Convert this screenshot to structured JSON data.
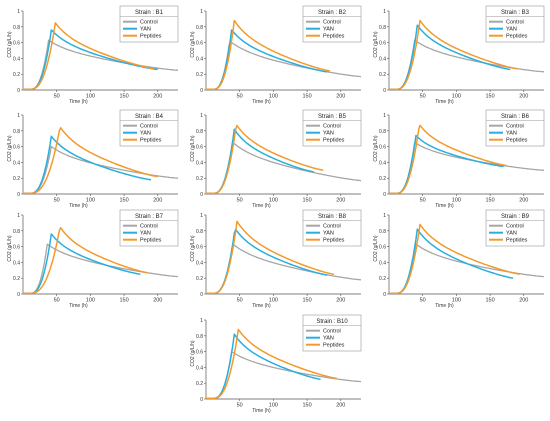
{
  "figure": {
    "legend_title_prefix": "Strain : ",
    "colors": {
      "Control": "#a6a6a6",
      "YAN": "#2aaee0",
      "Peptides": "#f39a2b"
    }
  },
  "chart_data": [
    {
      "type": "line",
      "strain": "B1",
      "xlabel": "Time (h)",
      "ylabel": "CO2 (g/L/h)",
      "xlim": [
        0,
        230
      ],
      "ylim": [
        0,
        1.0
      ],
      "xticks": [
        50,
        100,
        150,
        200
      ],
      "yticks": [
        0,
        0.2,
        0.4,
        0.6,
        0.8,
        1.0
      ],
      "ytick_labels": [
        "0",
        "0.2",
        "0.4",
        "0.6",
        "0.8",
        "1"
      ],
      "grid": false,
      "legend": "top-right",
      "series": [
        {
          "name": "Control",
          "peak_x": 38,
          "peak_y": 0.63,
          "end_x": 230,
          "end_y": 0.25
        },
        {
          "name": "YAN",
          "peak_x": 42,
          "peak_y": 0.76,
          "end_x": 200,
          "end_y": 0.26
        },
        {
          "name": "Peptides",
          "peak_x": 48,
          "peak_y": 0.85,
          "end_x": 195,
          "end_y": 0.27
        }
      ]
    },
    {
      "type": "line",
      "strain": "B2",
      "xlabel": "Time (h)",
      "ylabel": "CO2 (g/L/h)",
      "xlim": [
        0,
        230
      ],
      "ylim": [
        0,
        1.0
      ],
      "xticks": [
        50,
        100,
        150,
        200
      ],
      "yticks": [
        0,
        0.2,
        0.4,
        0.6,
        0.8,
        1.0
      ],
      "ytick_labels": [
        "0",
        "0.2",
        "0.4",
        "0.6",
        "0.8",
        "1"
      ],
      "grid": false,
      "legend": "top-right",
      "series": [
        {
          "name": "Control",
          "peak_x": 35,
          "peak_y": 0.62,
          "end_x": 230,
          "end_y": 0.17
        },
        {
          "name": "YAN",
          "peak_x": 38,
          "peak_y": 0.76,
          "end_x": 180,
          "end_y": 0.23
        },
        {
          "name": "Peptides",
          "peak_x": 42,
          "peak_y": 0.88,
          "end_x": 185,
          "end_y": 0.24
        }
      ]
    },
    {
      "type": "line",
      "strain": "B3",
      "xlabel": "Time (h)",
      "ylabel": "CO2 (g/L/h)",
      "xlim": [
        0,
        230
      ],
      "ylim": [
        0,
        1.0
      ],
      "xticks": [
        50,
        100,
        150,
        200
      ],
      "yticks": [
        0,
        0.2,
        0.4,
        0.6,
        0.8,
        1.0
      ],
      "ytick_labels": [
        "0",
        "0.2",
        "0.4",
        "0.6",
        "0.8",
        "1"
      ],
      "grid": false,
      "legend": "top-right",
      "series": [
        {
          "name": "Control",
          "peak_x": 38,
          "peak_y": 0.63,
          "end_x": 230,
          "end_y": 0.23
        },
        {
          "name": "YAN",
          "peak_x": 42,
          "peak_y": 0.82,
          "end_x": 180,
          "end_y": 0.26
        },
        {
          "name": "Peptides",
          "peak_x": 46,
          "peak_y": 0.88,
          "end_x": 190,
          "end_y": 0.27
        }
      ]
    },
    {
      "type": "line",
      "strain": "B4",
      "xlabel": "Time (h)",
      "ylabel": "CO2 (g/L/h)",
      "xlim": [
        0,
        230
      ],
      "ylim": [
        0,
        1.0
      ],
      "xticks": [
        50,
        100,
        150,
        200
      ],
      "yticks": [
        0,
        0.2,
        0.4,
        0.6,
        0.8,
        1.0
      ],
      "ytick_labels": [
        "0",
        "0.2",
        "0.4",
        "0.6",
        "0.8",
        "1"
      ],
      "grid": false,
      "legend": "top-right",
      "series": [
        {
          "name": "Control",
          "peak_x": 42,
          "peak_y": 0.6,
          "end_x": 230,
          "end_y": 0.2
        },
        {
          "name": "YAN",
          "peak_x": 42,
          "peak_y": 0.73,
          "end_x": 190,
          "end_y": 0.18
        },
        {
          "name": "Peptides",
          "peak_x": 55,
          "peak_y": 0.85,
          "end_x": 200,
          "end_y": 0.22
        }
      ]
    },
    {
      "type": "line",
      "strain": "B5",
      "xlabel": "Time (h)",
      "ylabel": "CO2 (g/L/h)",
      "xlim": [
        0,
        230
      ],
      "ylim": [
        0,
        1.0
      ],
      "xticks": [
        50,
        100,
        150,
        200
      ],
      "yticks": [
        0,
        0.2,
        0.4,
        0.6,
        0.8,
        1.0
      ],
      "ytick_labels": [
        "0",
        "0.2",
        "0.4",
        "0.6",
        "0.8",
        "1"
      ],
      "grid": false,
      "legend": "top-right",
      "series": [
        {
          "name": "Control",
          "peak_x": 40,
          "peak_y": 0.65,
          "end_x": 230,
          "end_y": 0.17
        },
        {
          "name": "YAN",
          "peak_x": 42,
          "peak_y": 0.82,
          "end_x": 160,
          "end_y": 0.28
        },
        {
          "name": "Peptides",
          "peak_x": 45,
          "peak_y": 0.88,
          "end_x": 175,
          "end_y": 0.3
        }
      ]
    },
    {
      "type": "line",
      "strain": "B6",
      "xlabel": "Time (h)",
      "ylabel": "CO2 (g/L/h)",
      "xlim": [
        0,
        230
      ],
      "ylim": [
        0,
        1.0
      ],
      "xticks": [
        50,
        100,
        150,
        200
      ],
      "yticks": [
        0,
        0.2,
        0.4,
        0.6,
        0.8,
        1.0
      ],
      "ytick_labels": [
        "0",
        "0.2",
        "0.4",
        "0.6",
        "0.8",
        "1"
      ],
      "grid": false,
      "legend": "top-right",
      "series": [
        {
          "name": "Control",
          "peak_x": 38,
          "peak_y": 0.65,
          "end_x": 230,
          "end_y": 0.3
        },
        {
          "name": "YAN",
          "peak_x": 40,
          "peak_y": 0.74,
          "end_x": 170,
          "end_y": 0.35
        },
        {
          "name": "Peptides",
          "peak_x": 45,
          "peak_y": 0.88,
          "end_x": 175,
          "end_y": 0.36
        }
      ]
    },
    {
      "type": "line",
      "strain": "B7",
      "xlabel": "Time (h)",
      "ylabel": "CO2 (g/L/h)",
      "xlim": [
        0,
        230
      ],
      "ylim": [
        0,
        1.0
      ],
      "xticks": [
        50,
        100,
        150,
        200
      ],
      "yticks": [
        0,
        0.2,
        0.4,
        0.6,
        0.8,
        1.0
      ],
      "ytick_labels": [
        "0",
        "0.2",
        "0.4",
        "0.6",
        "0.8",
        "1"
      ],
      "grid": false,
      "legend": "top-right",
      "series": [
        {
          "name": "Control",
          "peak_x": 36,
          "peak_y": 0.63,
          "end_x": 230,
          "end_y": 0.22
        },
        {
          "name": "YAN",
          "peak_x": 42,
          "peak_y": 0.76,
          "end_x": 175,
          "end_y": 0.25
        },
        {
          "name": "Peptides",
          "peak_x": 55,
          "peak_y": 0.85,
          "end_x": 185,
          "end_y": 0.27
        }
      ]
    },
    {
      "type": "line",
      "strain": "B8",
      "xlabel": "Time (h)",
      "ylabel": "CO2 (g/L/h)",
      "xlim": [
        0,
        230
      ],
      "ylim": [
        0,
        1.0
      ],
      "xticks": [
        50,
        100,
        150,
        200
      ],
      "yticks": [
        0,
        0.2,
        0.4,
        0.6,
        0.8,
        1.0
      ],
      "ytick_labels": [
        "0",
        "0.2",
        "0.4",
        "0.6",
        "0.8",
        "1"
      ],
      "grid": false,
      "legend": "top-right",
      "series": [
        {
          "name": "Control",
          "peak_x": 40,
          "peak_y": 0.63,
          "end_x": 230,
          "end_y": 0.18
        },
        {
          "name": "YAN",
          "peak_x": 43,
          "peak_y": 0.83,
          "end_x": 180,
          "end_y": 0.24
        },
        {
          "name": "Peptides",
          "peak_x": 46,
          "peak_y": 0.92,
          "end_x": 190,
          "end_y": 0.25
        }
      ]
    },
    {
      "type": "line",
      "strain": "B9",
      "xlabel": "Time (h)",
      "ylabel": "CO2 (g/L/h)",
      "xlim": [
        0,
        230
      ],
      "ylim": [
        0,
        1.0
      ],
      "xticks": [
        50,
        100,
        150,
        200
      ],
      "yticks": [
        0,
        0.2,
        0.4,
        0.6,
        0.8,
        1.0
      ],
      "ytick_labels": [
        "0",
        "0.2",
        "0.4",
        "0.6",
        "0.8",
        "1"
      ],
      "grid": false,
      "legend": "top-right",
      "series": [
        {
          "name": "Control",
          "peak_x": 40,
          "peak_y": 0.63,
          "end_x": 230,
          "end_y": 0.22
        },
        {
          "name": "YAN",
          "peak_x": 42,
          "peak_y": 0.82,
          "end_x": 185,
          "end_y": 0.2
        },
        {
          "name": "Peptides",
          "peak_x": 46,
          "peak_y": 0.88,
          "end_x": 195,
          "end_y": 0.25
        }
      ]
    },
    {
      "type": "line",
      "strain": "B10",
      "xlabel": "Time (h)",
      "ylabel": "CO2 (g/L/h)",
      "xlim": [
        0,
        230
      ],
      "ylim": [
        0,
        1.0
      ],
      "xticks": [
        50,
        100,
        150,
        200
      ],
      "yticks": [
        0,
        0.2,
        0.4,
        0.6,
        0.8,
        1.0
      ],
      "ytick_labels": [
        "0",
        "0.2",
        "0.4",
        "0.6",
        "0.8",
        "1"
      ],
      "grid": false,
      "legend": "top-right",
      "series": [
        {
          "name": "Control",
          "peak_x": 38,
          "peak_y": 0.6,
          "end_x": 230,
          "end_y": 0.22
        },
        {
          "name": "YAN",
          "peak_x": 42,
          "peak_y": 0.82,
          "end_x": 170,
          "end_y": 0.25
        },
        {
          "name": "Peptides",
          "peak_x": 48,
          "peak_y": 0.88,
          "end_x": 195,
          "end_y": 0.26
        }
      ]
    }
  ]
}
